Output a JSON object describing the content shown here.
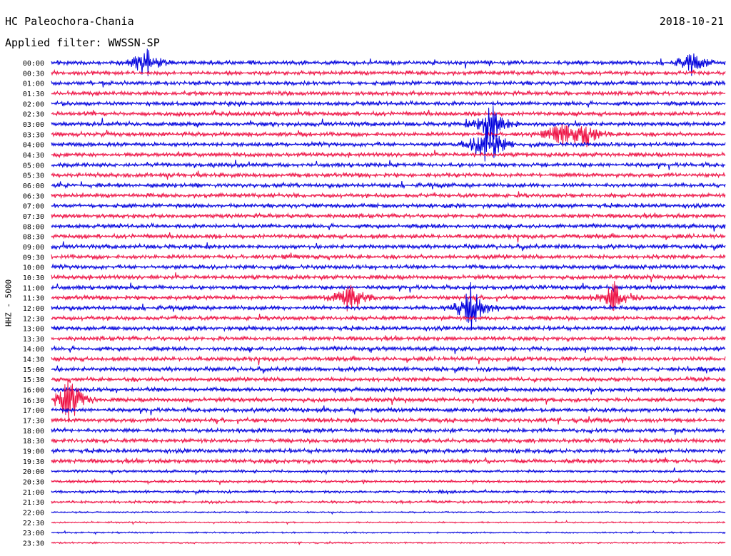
{
  "header": {
    "station": "HC Paleochora-Chania",
    "date": "2018-10-21",
    "filter": "Applied filter: WWSSN-SP"
  },
  "chart_data": {
    "type": "line",
    "title": "HC Paleochora-Chania",
    "subtitle": "Applied filter: WWSSN-SP",
    "date": "2018-10-21",
    "ylabel": "HHZ - 5000",
    "rows": [
      "00:00",
      "00:30",
      "01:00",
      "01:30",
      "02:00",
      "02:30",
      "03:00",
      "03:30",
      "04:00",
      "04:30",
      "05:00",
      "05:30",
      "06:00",
      "06:30",
      "07:00",
      "07:30",
      "08:00",
      "08:30",
      "09:00",
      "09:30",
      "10:00",
      "10:30",
      "11:00",
      "11:30",
      "12:00",
      "12:30",
      "13:00",
      "13:30",
      "14:00",
      "14:30",
      "15:00",
      "15:30",
      "16:00",
      "16:30",
      "17:00",
      "17:30",
      "18:00",
      "18:30",
      "19:00",
      "19:30",
      "20:00",
      "20:30",
      "21:00",
      "21:30",
      "22:00",
      "22:30",
      "23:00",
      "23:30"
    ],
    "row_minutes": 30,
    "colors": [
      "#0000dd",
      "#ee1144"
    ],
    "events": [
      {
        "row": "00:00",
        "minute": 4.2,
        "amplitude": 1.6
      },
      {
        "row": "00:00",
        "minute": 28.5,
        "amplitude": 1.0
      },
      {
        "row": "03:00",
        "minute": 19.6,
        "amplitude": 2.2
      },
      {
        "row": "03:30",
        "minute": 22.7,
        "amplitude": 1.2
      },
      {
        "row": "03:30",
        "minute": 23.8,
        "amplitude": 1.3
      },
      {
        "row": "04:00",
        "minute": 19.4,
        "amplitude": 2.8
      },
      {
        "row": "11:30",
        "minute": 13.3,
        "amplitude": 1.8
      },
      {
        "row": "11:30",
        "minute": 25.1,
        "amplitude": 1.6
      },
      {
        "row": "12:00",
        "minute": 18.7,
        "amplitude": 2.6
      },
      {
        "row": "16:30",
        "minute": 0.8,
        "amplitude": 2.6
      }
    ]
  }
}
